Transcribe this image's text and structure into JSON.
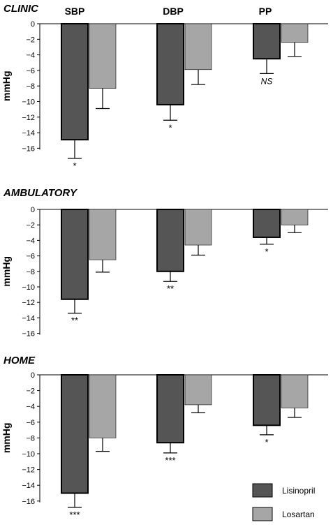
{
  "chart_data": [
    {
      "type": "bar",
      "title": "CLINIC",
      "ylabel": "mmHg",
      "categories": [
        "SBP",
        "DBP",
        "PP"
      ],
      "ylim": [
        -16,
        0
      ],
      "yticks": [
        0,
        -2,
        -4,
        -6,
        -8,
        -10,
        -12,
        -14,
        -16
      ],
      "series": [
        {
          "name": "Lisinopril",
          "values": [
            -14.9,
            -10.4,
            -4.5
          ],
          "errors": [
            2.4,
            2.0,
            1.9
          ]
        },
        {
          "name": "Losartan",
          "values": [
            -8.3,
            -5.9,
            -2.4
          ],
          "errors": [
            2.6,
            1.9,
            1.8
          ]
        }
      ],
      "significance": [
        "*",
        "*",
        "NS"
      ]
    },
    {
      "type": "bar",
      "title": "AMBULATORY",
      "ylabel": "mmHg",
      "categories": [
        "SBP",
        "DBP",
        "PP"
      ],
      "ylim": [
        -16,
        0
      ],
      "yticks": [
        0,
        -2,
        -4,
        -6,
        -8,
        -10,
        -12,
        -14,
        -16
      ],
      "series": [
        {
          "name": "Lisinopril",
          "values": [
            -11.6,
            -8.0,
            -3.6
          ],
          "errors": [
            1.8,
            1.3,
            0.9
          ]
        },
        {
          "name": "Losartan",
          "values": [
            -6.5,
            -4.6,
            -2.0
          ],
          "errors": [
            1.6,
            1.3,
            1.0
          ]
        }
      ],
      "significance": [
        "**",
        "**",
        "*"
      ]
    },
    {
      "type": "bar",
      "title": "HOME",
      "ylabel": "mmHg",
      "categories": [
        "SBP",
        "DBP",
        "PP"
      ],
      "ylim": [
        -16,
        0
      ],
      "yticks": [
        0,
        -2,
        -4,
        -6,
        -8,
        -10,
        -12,
        -14,
        -16
      ],
      "series": [
        {
          "name": "Lisinopril",
          "values": [
            -15.0,
            -8.6,
            -6.4
          ],
          "errors": [
            1.8,
            1.3,
            1.2
          ]
        },
        {
          "name": "Losartan",
          "values": [
            -8.0,
            -3.8,
            -4.2
          ],
          "errors": [
            1.7,
            1.0,
            1.2
          ]
        }
      ],
      "significance": [
        "***",
        "***",
        "*"
      ]
    }
  ],
  "legend": {
    "placement": "bottom-right",
    "items": [
      {
        "label": "Lisinopril",
        "color": "#555555"
      },
      {
        "label": "Losartan",
        "color": "#a6a6a6"
      }
    ]
  },
  "colors": {
    "lisinopril": "#555555",
    "losartan": "#a6a6a6",
    "stroke": "#000000"
  }
}
